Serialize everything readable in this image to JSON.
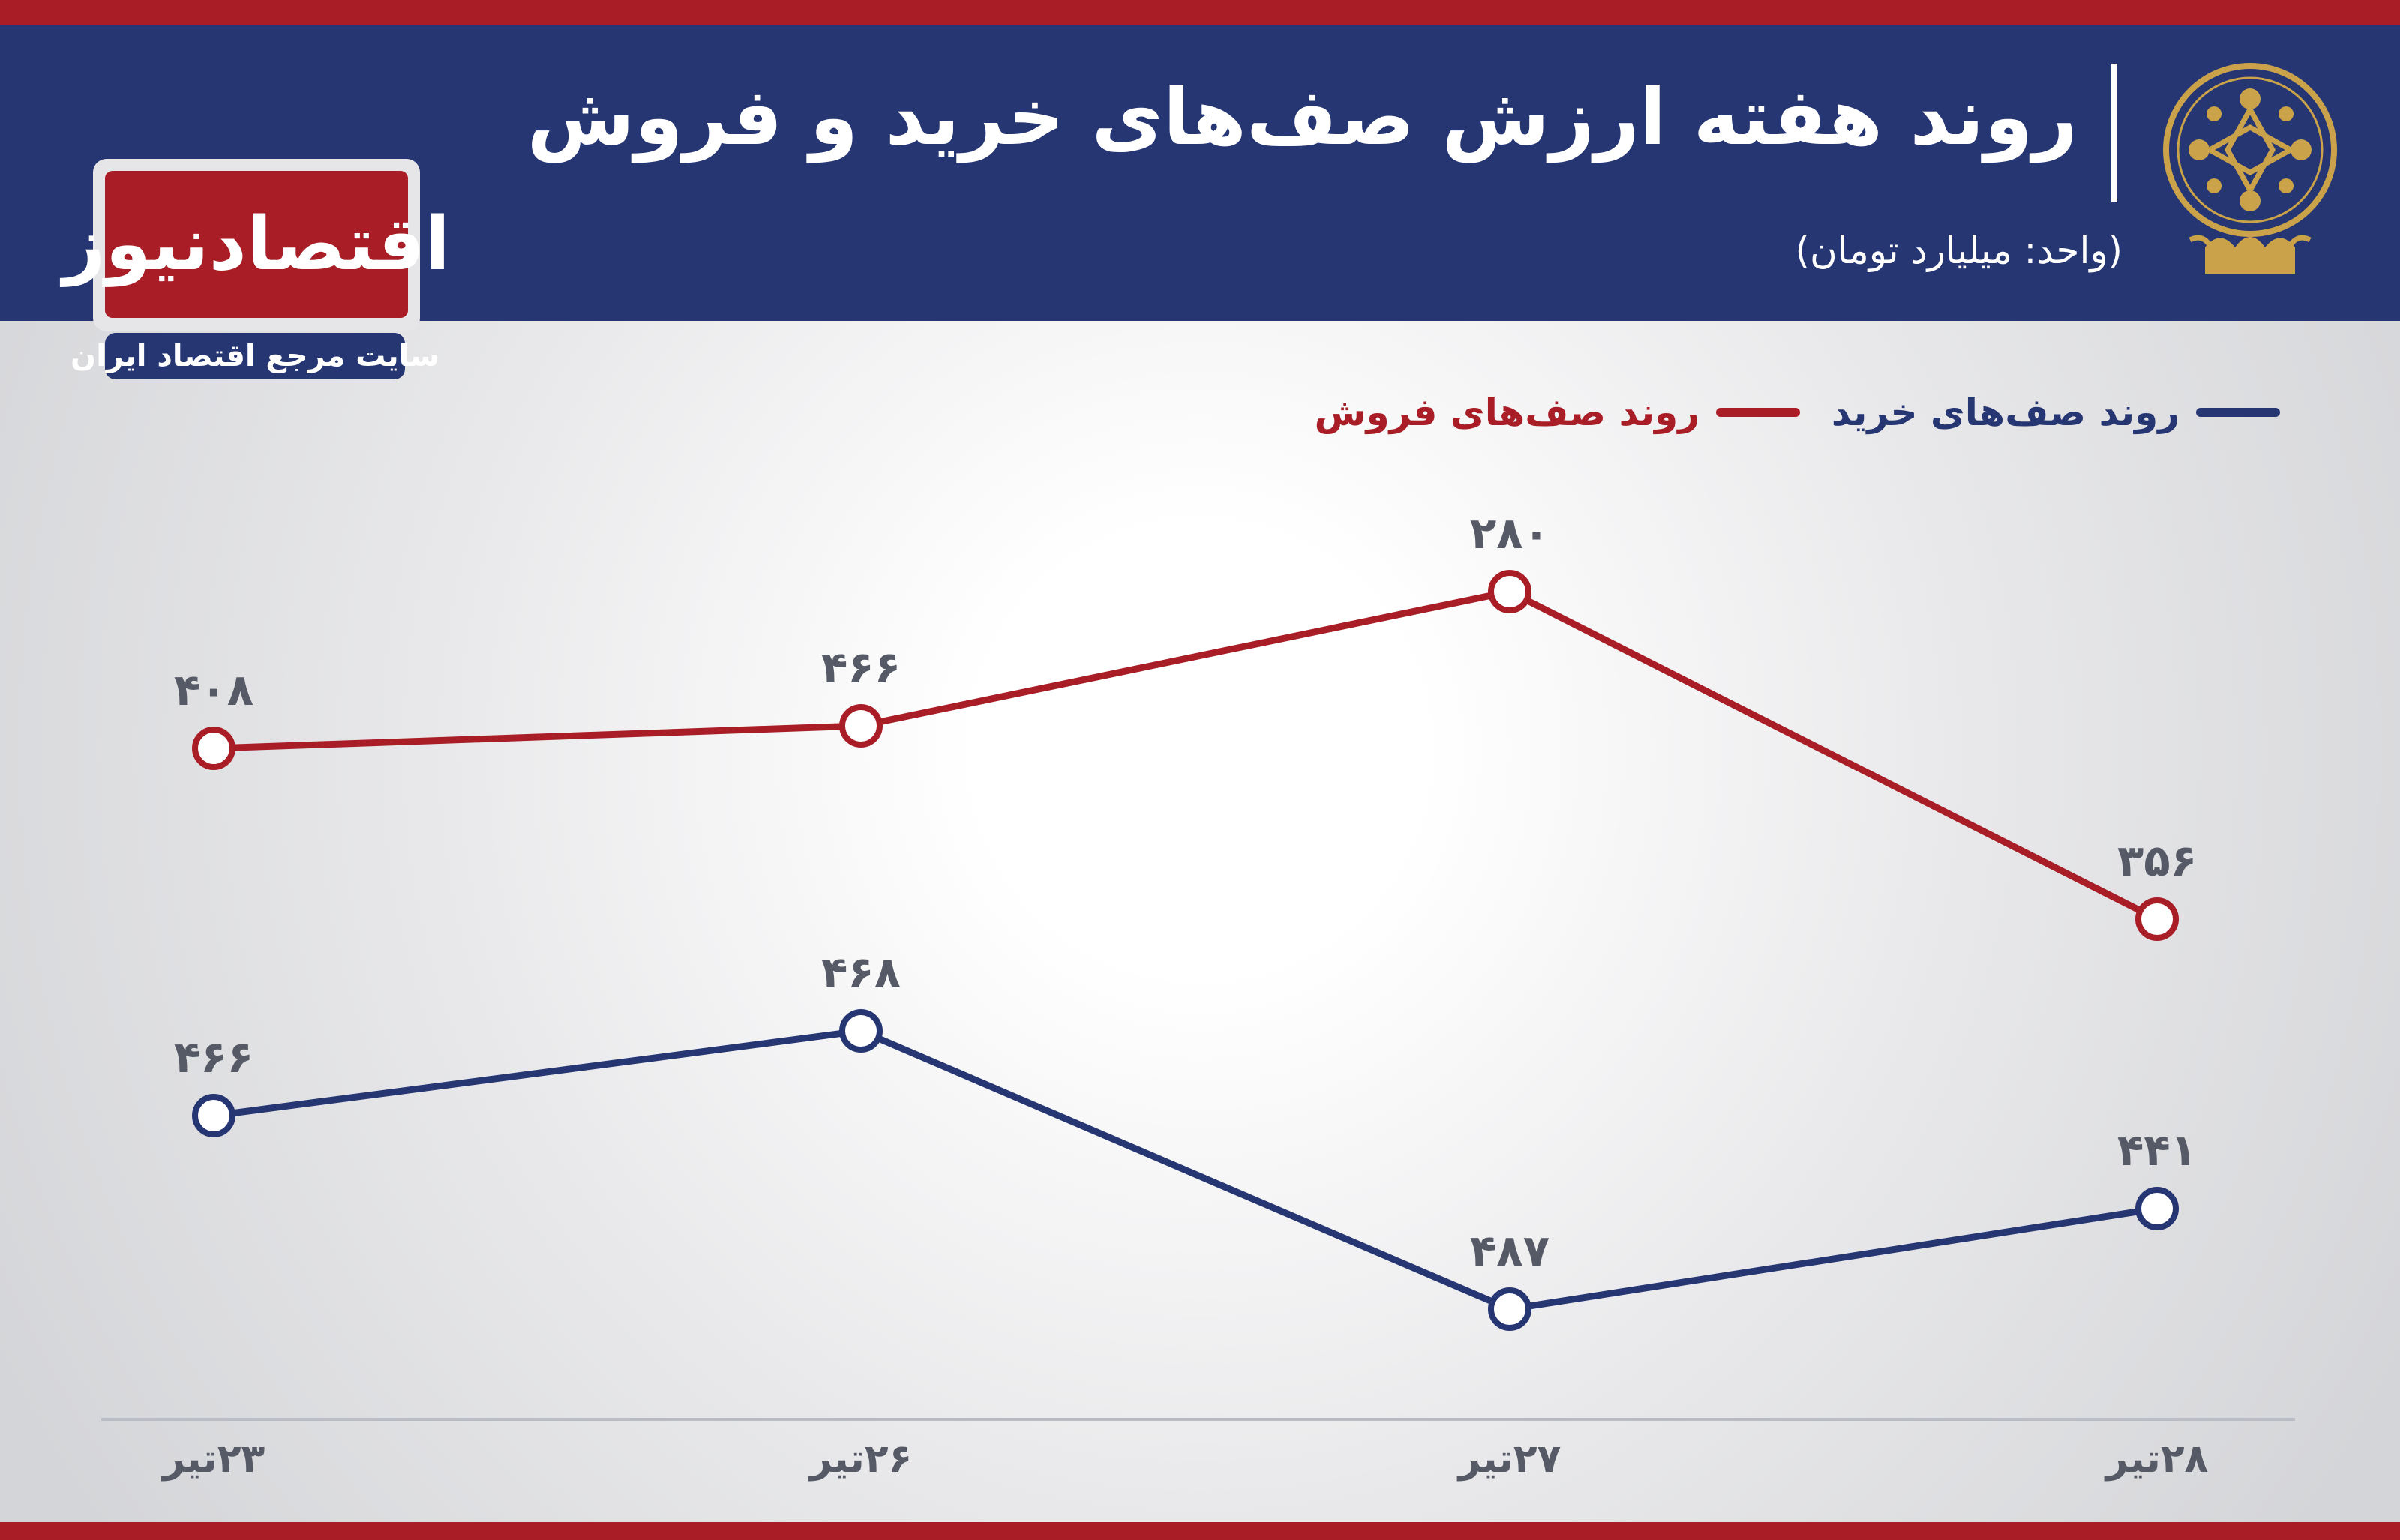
{
  "header": {
    "title": "روند هفته ارزش صف‌های خرید و فروش",
    "unit": "(واحد: میلیارد تومان)"
  },
  "logo": {
    "name": "اقتصادنیوز",
    "tagline": "سایت مرجع اقتصاد ایران"
  },
  "colors": {
    "sell": "#a81d26",
    "buy": "#263673",
    "label": "#555a66",
    "axis": "#b9bcc4"
  },
  "chart_data": {
    "type": "line",
    "categories": [
      "۲۳تیر",
      "۲۶تیر",
      "۲۷تیر",
      "۲۸تیر"
    ],
    "series": [
      {
        "name": "روند صف‌های فروش",
        "key": "sell",
        "values": [
          408,
          466,
          280,
          356
        ],
        "labels": [
          "۴۰۸",
          "۴۶۶",
          "۲۸۰",
          "۳۵۶"
        ]
      },
      {
        "name": "روند صف‌های خرید",
        "key": "buy",
        "values": [
          466,
          468,
          487,
          441
        ],
        "labels": [
          "۴۶۶",
          "۴۶۸",
          "۴۸۷",
          "۴۴۱"
        ]
      }
    ],
    "title": "روند هفته ارزش صف‌های خرید و فروش",
    "unit": "میلیارد تومان",
    "legend_position": "top-right",
    "grid": false
  }
}
